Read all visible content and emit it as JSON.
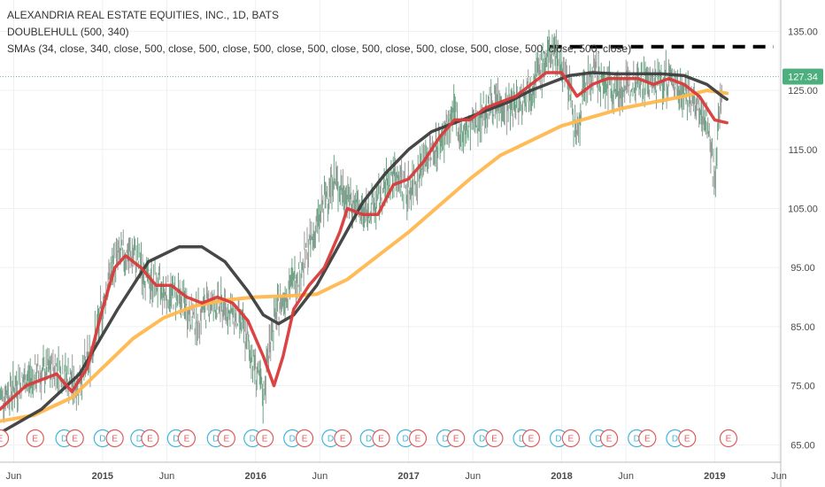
{
  "legend": {
    "title": "ALEXANDRIA REAL ESTATE EQUITIES, INC., 1D, BATS",
    "indicator1": "DOUBLEHULL (500, 340)",
    "indicator2": "SMAs (34, close, 340, close, 500, close, 500, close, 500, close, 500, close, 500, close, 500, close, 500, close, 500, close, 500, close)"
  },
  "colors": {
    "price_bars": "#6aa384",
    "sma_red": "#d93a3a",
    "sma_dark": "#3d3d3d",
    "sma_orange": "#ffb74d",
    "resistance": "#000000",
    "last_price_bg": "#4caf7d",
    "event_earnings": "#e05b5b",
    "event_dividend": "#3fb6dc"
  },
  "chart_data": {
    "type": "line",
    "ylim": [
      64,
      137
    ],
    "xlim": [
      2014.33,
      2019.42
    ],
    "y_ticks": [
      65,
      75,
      85,
      95,
      105,
      115,
      125,
      135
    ],
    "y_tick_labels": [
      "65.00",
      "75.00",
      "85.00",
      "95.00",
      "105.00",
      "115.00",
      "125.00",
      "135.00"
    ],
    "x_ticks": [
      {
        "t": 2014.42,
        "label": "Jun",
        "bold": false
      },
      {
        "t": 2015.0,
        "label": "2015",
        "bold": true
      },
      {
        "t": 2015.42,
        "label": "Jun",
        "bold": false
      },
      {
        "t": 2016.0,
        "label": "2016",
        "bold": true
      },
      {
        "t": 2016.42,
        "label": "Jun",
        "bold": false
      },
      {
        "t": 2017.0,
        "label": "2017",
        "bold": true
      },
      {
        "t": 2017.42,
        "label": "Jun",
        "bold": false
      },
      {
        "t": 2018.0,
        "label": "2018",
        "bold": true
      },
      {
        "t": 2018.42,
        "label": "Jun",
        "bold": false
      },
      {
        "t": 2019.0,
        "label": "2019",
        "bold": true
      },
      {
        "t": 2019.42,
        "label": "Jun",
        "bold": false
      }
    ],
    "last_price": "127.34",
    "last_price_value": 127.34,
    "resistance_level": 132.4,
    "resistance_range": [
      2017.92,
      2019.42
    ],
    "price": {
      "t": [
        2014.33,
        2014.5,
        2014.7,
        2014.83,
        2014.92,
        2015.0,
        2015.05,
        2015.1,
        2015.2,
        2015.3,
        2015.4,
        2015.5,
        2015.6,
        2015.7,
        2015.8,
        2015.9,
        2016.0,
        2016.05,
        2016.1,
        2016.15,
        2016.2,
        2016.3,
        2016.4,
        2016.5,
        2016.6,
        2016.7,
        2016.8,
        2016.9,
        2017.0,
        2017.1,
        2017.2,
        2017.3,
        2017.35,
        2017.45,
        2017.55,
        2017.65,
        2017.75,
        2017.85,
        2017.95,
        2018.0,
        2018.05,
        2018.1,
        2018.15,
        2018.2,
        2018.3,
        2018.4,
        2018.5,
        2018.6,
        2018.7,
        2018.8,
        2018.9,
        2018.95,
        2019.0,
        2019.05
      ],
      "v": [
        73,
        76,
        78,
        75,
        80,
        88,
        94,
        97,
        97,
        93,
        91,
        90,
        86,
        89,
        88,
        86,
        78,
        73,
        84,
        88,
        91,
        95,
        102,
        110,
        107,
        104,
        106,
        111,
        108,
        113,
        116,
        121,
        117,
        120,
        123,
        122,
        124,
        128,
        132,
        129,
        126,
        116,
        126,
        128,
        126,
        125,
        127,
        126,
        127,
        125,
        121,
        120,
        110,
        127.34
      ]
    },
    "series": [
      {
        "name": "SMA 34",
        "color_key": "sma_red",
        "t": [
          2014.33,
          2014.5,
          2014.7,
          2014.8,
          2014.9,
          2015.0,
          2015.08,
          2015.15,
          2015.25,
          2015.35,
          2015.45,
          2015.55,
          2015.65,
          2015.75,
          2015.85,
          2015.95,
          2016.05,
          2016.12,
          2016.18,
          2016.25,
          2016.35,
          2016.45,
          2016.55,
          2016.6,
          2016.7,
          2016.8,
          2016.9,
          2017.0,
          2017.1,
          2017.2,
          2017.3,
          2017.4,
          2017.5,
          2017.6,
          2017.7,
          2017.8,
          2017.9,
          2017.95,
          2018.0,
          2018.1,
          2018.2,
          2018.3,
          2018.4,
          2018.5,
          2018.6,
          2018.7,
          2018.8,
          2018.9,
          2018.95,
          2019.0,
          2019.08
        ],
        "v": [
          71,
          75,
          77,
          74,
          78,
          88,
          95,
          97,
          95,
          92,
          92,
          90,
          89,
          90,
          89,
          86,
          80,
          75,
          80,
          88,
          92,
          95,
          101,
          105,
          104,
          104,
          109,
          110,
          113,
          117,
          120,
          120,
          122,
          123,
          124,
          126,
          128,
          128,
          128,
          124,
          126,
          127,
          127,
          127,
          126,
          127,
          126,
          124,
          122,
          120,
          119.5
        ]
      },
      {
        "name": "SMA 340",
        "color_key": "sma_dark",
        "t": [
          2014.33,
          2014.6,
          2014.85,
          2015.1,
          2015.3,
          2015.5,
          2015.65,
          2015.8,
          2015.95,
          2016.05,
          2016.15,
          2016.25,
          2016.4,
          2016.55,
          2016.7,
          2016.85,
          2017.0,
          2017.15,
          2017.3,
          2017.5,
          2017.65,
          2017.8,
          2017.95,
          2018.05,
          2018.2,
          2018.35,
          2018.5,
          2018.65,
          2018.8,
          2018.95,
          2019.05,
          2019.08
        ],
        "v": [
          67,
          71,
          77,
          88,
          96,
          98.5,
          98.5,
          96,
          91,
          87,
          85.5,
          87,
          92,
          99,
          106,
          111,
          115,
          118,
          119.5,
          121.5,
          123,
          125,
          126.5,
          127.5,
          128,
          127.8,
          127.8,
          127.8,
          127.5,
          126,
          124,
          123.5
        ]
      },
      {
        "name": "SMA 500",
        "color_key": "sma_orange",
        "t": [
          2014.33,
          2014.55,
          2014.8,
          2015.0,
          2015.2,
          2015.4,
          2015.6,
          2015.8,
          2016.0,
          2016.2,
          2016.4,
          2016.6,
          2016.8,
          2017.0,
          2017.2,
          2017.4,
          2017.6,
          2017.8,
          2018.0,
          2018.2,
          2018.4,
          2018.6,
          2018.8,
          2018.95,
          2019.08
        ],
        "v": [
          69,
          70,
          73,
          78,
          83,
          86.5,
          88.5,
          89.5,
          90,
          90.2,
          90.5,
          93,
          97,
          101,
          105.5,
          110,
          114,
          116.5,
          119,
          120.5,
          122,
          123,
          124,
          125,
          124.5
        ]
      }
    ],
    "events": [
      {
        "t": 2014.33,
        "label": "E"
      },
      {
        "t": 2014.56,
        "label": "E"
      },
      {
        "t": 2014.75,
        "label": "D"
      },
      {
        "t": 2014.82,
        "label": "E"
      },
      {
        "t": 2015.0,
        "label": "D"
      },
      {
        "t": 2015.08,
        "label": "E"
      },
      {
        "t": 2015.24,
        "label": "D"
      },
      {
        "t": 2015.31,
        "label": "E"
      },
      {
        "t": 2015.48,
        "label": "D"
      },
      {
        "t": 2015.55,
        "label": "E"
      },
      {
        "t": 2015.74,
        "label": "D"
      },
      {
        "t": 2015.81,
        "label": "E"
      },
      {
        "t": 2015.98,
        "label": "D"
      },
      {
        "t": 2016.06,
        "label": "E"
      },
      {
        "t": 2016.24,
        "label": "D"
      },
      {
        "t": 2016.32,
        "label": "E"
      },
      {
        "t": 2016.49,
        "label": "D"
      },
      {
        "t": 2016.57,
        "label": "E"
      },
      {
        "t": 2016.74,
        "label": "D"
      },
      {
        "t": 2016.82,
        "label": "E"
      },
      {
        "t": 2016.98,
        "label": "D"
      },
      {
        "t": 2017.06,
        "label": "E"
      },
      {
        "t": 2017.24,
        "label": "D"
      },
      {
        "t": 2017.31,
        "label": "E"
      },
      {
        "t": 2017.48,
        "label": "D"
      },
      {
        "t": 2017.56,
        "label": "E"
      },
      {
        "t": 2017.74,
        "label": "D"
      },
      {
        "t": 2017.8,
        "label": "E"
      },
      {
        "t": 2017.98,
        "label": "D"
      },
      {
        "t": 2018.06,
        "label": "E"
      },
      {
        "t": 2018.24,
        "label": "D"
      },
      {
        "t": 2018.31,
        "label": "E"
      },
      {
        "t": 2018.49,
        "label": "D"
      },
      {
        "t": 2018.56,
        "label": "E"
      },
      {
        "t": 2018.74,
        "label": "D"
      },
      {
        "t": 2018.82,
        "label": "E"
      },
      {
        "t": 2019.09,
        "label": "E"
      }
    ]
  }
}
